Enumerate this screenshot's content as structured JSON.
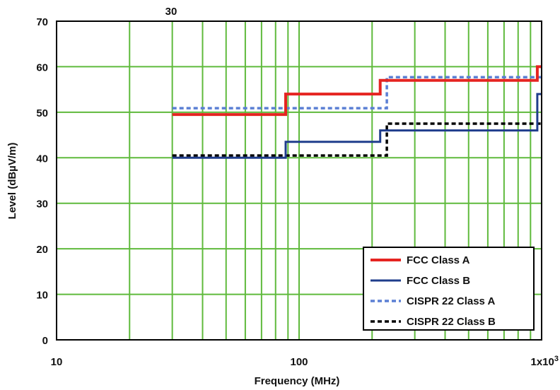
{
  "chart_data": {
    "type": "line",
    "title": "",
    "xlabel": "Frequency (MHz)",
    "ylabel": "Level (dBµV/m)",
    "xscale": "log",
    "xlim": [
      10,
      1000
    ],
    "ylim": [
      0,
      70
    ],
    "yticks": [
      0,
      10,
      20,
      30,
      40,
      50,
      60,
      70
    ],
    "ytick_labels": [
      "0",
      "10",
      "20",
      "30",
      "40",
      "50",
      "60",
      "70"
    ],
    "xticks": [
      10,
      100,
      1000
    ],
    "xtick_labels": [
      "10",
      "100",
      "1x10"
    ],
    "xtick_superscript": "3",
    "top_annotation": "30",
    "grid": true,
    "grid_color": "#5fba3c",
    "legend_position": "bottom-right",
    "series": [
      {
        "name": "FCC Class A",
        "color": "#e52421",
        "style": "solid",
        "x": [
          30,
          88,
          88,
          216,
          216,
          960,
          960,
          1000
        ],
        "y": [
          49.5,
          49.5,
          54,
          54,
          57,
          57,
          60,
          60
        ]
      },
      {
        "name": "FCC Class B",
        "color": "#1f3d8c",
        "style": "solid",
        "x": [
          30,
          88,
          88,
          216,
          216,
          960,
          960,
          1000
        ],
        "y": [
          40,
          40,
          43.5,
          43.5,
          46,
          46,
          54,
          54
        ]
      },
      {
        "name": "CISPR 22 Class A",
        "color": "#5b7fd4",
        "style": "dashed",
        "x": [
          30,
          230,
          230,
          1000
        ],
        "y": [
          50.9,
          50.9,
          57.7,
          57.7
        ]
      },
      {
        "name": "CISPR 22 Class B",
        "color": "#000000",
        "style": "dashed",
        "x": [
          30,
          230,
          230,
          1000
        ],
        "y": [
          40.5,
          40.5,
          47.5,
          47.5
        ]
      }
    ]
  }
}
